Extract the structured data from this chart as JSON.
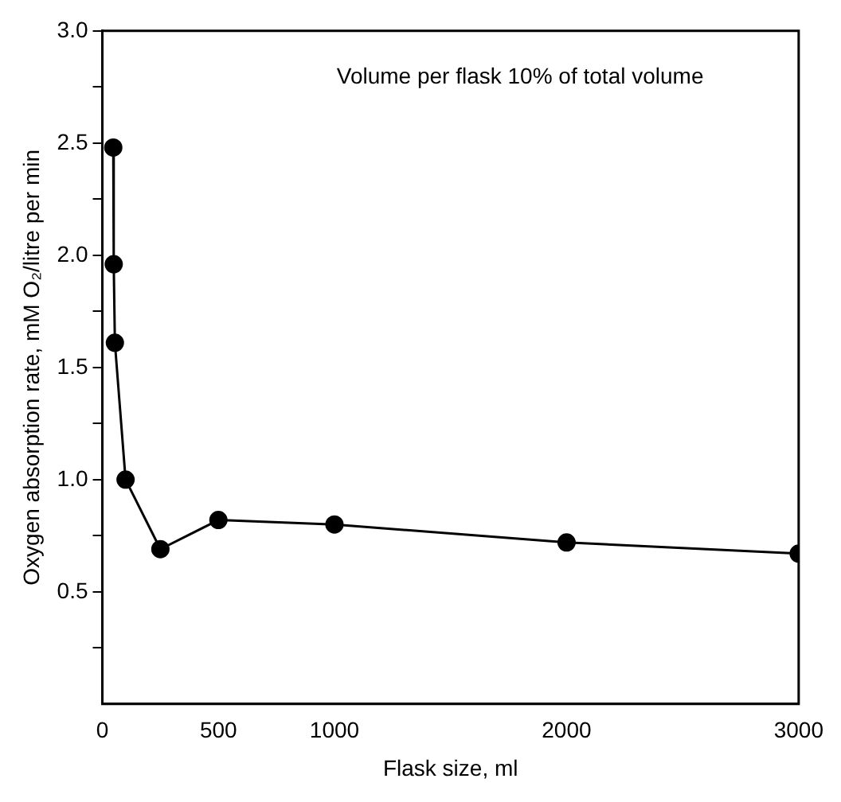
{
  "chart_data": {
    "type": "line",
    "xlabel": "Flask size, ml",
    "ylabel": "Oxygen absorption rate, mM O₂/litre per min",
    "annotations": [
      "Volume per flask 10% of total volume"
    ],
    "x": [
      47,
      49,
      54,
      100,
      250,
      500,
      1000,
      2000,
      3000
    ],
    "series": [
      {
        "color": "#000000",
        "values": [
          2.48,
          1.96,
          1.61,
          1.0,
          0.69,
          0.82,
          0.8,
          0.72,
          0.67
        ]
      }
    ],
    "xlim": [
      0,
      3000
    ],
    "xticks": [
      0,
      500,
      1000,
      2000,
      3000
    ],
    "ylim": [
      0,
      3
    ],
    "yticks": [
      {
        "value": 0.25,
        "label": null
      },
      {
        "value": 0.5,
        "label": "0.5"
      },
      {
        "value": 0.75,
        "label": null
      },
      {
        "value": 1,
        "label": "1.0"
      },
      {
        "value": 1.25,
        "label": null
      },
      {
        "value": 1.5,
        "label": "1.5"
      },
      {
        "value": 1.75,
        "label": null
      },
      {
        "value": 2,
        "label": "2.0"
      },
      {
        "value": 2.25,
        "label": null
      },
      {
        "value": 2.5,
        "label": "2.5"
      },
      {
        "value": 2.75,
        "label": null
      },
      {
        "value": 3,
        "label": "3.0"
      }
    ],
    "grid": false,
    "legend": false,
    "marker": "circle",
    "line_style": "solid"
  }
}
